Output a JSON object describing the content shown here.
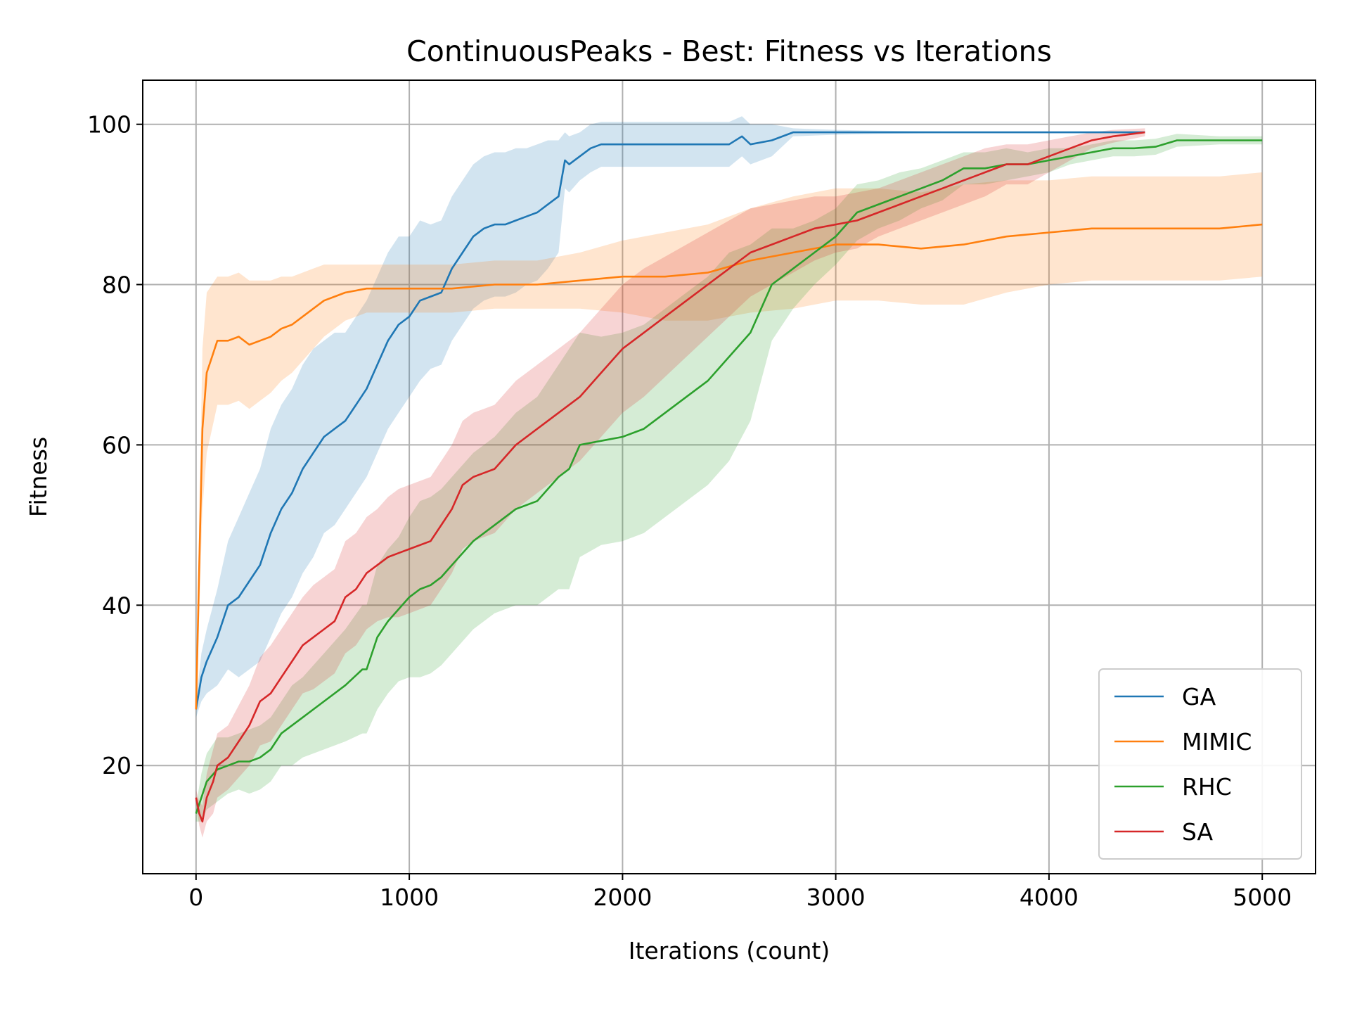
{
  "chart_data": {
    "type": "line",
    "title": "ContinuousPeaks - Best: Fitness vs Iterations",
    "xlabel": "Iterations (count)",
    "ylabel": "Fitness",
    "xlim": [
      -250,
      5250
    ],
    "ylim": [
      6.5,
      105.5
    ],
    "xticks": [
      0,
      1000,
      2000,
      3000,
      4000,
      5000
    ],
    "yticks": [
      20,
      40,
      60,
      80,
      100
    ],
    "grid": true,
    "legend_position": "lower-right",
    "shaded_band": "mean ± std (estimated)",
    "series": [
      {
        "name": "GA",
        "color": "#1f77b4",
        "x": [
          0,
          25,
          50,
          100,
          150,
          200,
          250,
          300,
          350,
          400,
          450,
          500,
          550,
          600,
          650,
          700,
          750,
          800,
          850,
          900,
          950,
          1000,
          1050,
          1100,
          1150,
          1200,
          1250,
          1300,
          1350,
          1400,
          1450,
          1500,
          1550,
          1600,
          1650,
          1700,
          1730,
          1750,
          1800,
          1850,
          1900,
          2000,
          2100,
          2200,
          2300,
          2400,
          2500,
          2560,
          2600,
          2700,
          2800,
          3000,
          3200,
          3500,
          4000,
          4450
        ],
        "y": [
          27,
          31,
          33,
          36,
          40,
          41,
          43,
          45,
          49,
          52,
          54,
          57,
          59,
          61,
          62,
          63,
          65,
          67,
          70,
          73,
          75,
          76,
          78,
          78.5,
          79,
          82,
          84,
          86,
          87,
          87.5,
          87.5,
          88,
          88.5,
          89,
          90,
          91,
          95.5,
          95,
          96,
          97,
          97.5,
          97.5,
          97.5,
          97.5,
          97.5,
          97.5,
          97.5,
          98.5,
          97.5,
          98,
          99,
          99,
          99,
          99,
          99,
          99
        ],
        "std": [
          1,
          3,
          4,
          6,
          8,
          10,
          11,
          12,
          13,
          13,
          13,
          13,
          13,
          12,
          12,
          11,
          11,
          11,
          11,
          11,
          11,
          10,
          10,
          9,
          9,
          9,
          9,
          9,
          9,
          9,
          9,
          9,
          8.5,
          8.5,
          8,
          7,
          3.5,
          3.5,
          3,
          3,
          2.8,
          2.8,
          2.8,
          2.8,
          2.8,
          2.8,
          2.8,
          2.5,
          2.5,
          2,
          0.5,
          0.3,
          0.2,
          0.1,
          0.1,
          0.1
        ]
      },
      {
        "name": "MIMIC",
        "color": "#ff7f0e",
        "x": [
          0,
          15,
          30,
          50,
          75,
          100,
          150,
          200,
          250,
          300,
          350,
          400,
          450,
          500,
          550,
          600,
          650,
          700,
          800,
          900,
          1000,
          1200,
          1400,
          1600,
          1800,
          2000,
          2200,
          2400,
          2600,
          2800,
          3000,
          3200,
          3400,
          3600,
          3800,
          4000,
          4200,
          4400,
          4600,
          4800,
          5000
        ],
        "y": [
          27,
          45,
          62,
          69,
          71,
          73,
          73,
          73.5,
          72.5,
          73,
          73.5,
          74.5,
          75,
          76,
          77,
          78,
          78.5,
          79,
          79.5,
          79.5,
          79.5,
          79.5,
          80,
          80,
          80.5,
          81,
          81,
          81.5,
          83,
          84,
          85,
          85,
          84.5,
          85,
          86,
          86.5,
          87,
          87,
          87,
          87,
          87.5
        ],
        "std": [
          1,
          6,
          10,
          10,
          9,
          8,
          8,
          8,
          8,
          7.5,
          7,
          6.5,
          6,
          5.5,
          5,
          4.5,
          4,
          3.5,
          3,
          3,
          3,
          3,
          3,
          3,
          3.5,
          4.5,
          5.5,
          6,
          6.5,
          7,
          7,
          7,
          7,
          7.5,
          7,
          6.5,
          6.5,
          6.5,
          6.5,
          6.5,
          6.5
        ]
      },
      {
        "name": "RHC",
        "color": "#2ca02c",
        "x": [
          0,
          25,
          50,
          100,
          150,
          200,
          250,
          300,
          350,
          400,
          450,
          500,
          600,
          700,
          780,
          800,
          850,
          900,
          950,
          1000,
          1050,
          1100,
          1150,
          1200,
          1300,
          1400,
          1500,
          1600,
          1700,
          1750,
          1800,
          1900,
          2000,
          2100,
          2200,
          2300,
          2400,
          2500,
          2600,
          2700,
          2800,
          2900,
          3000,
          3100,
          3200,
          3300,
          3400,
          3500,
          3600,
          3700,
          3800,
          3900,
          4000,
          4100,
          4200,
          4300,
          4400,
          4500,
          4600,
          4800,
          5000
        ],
        "y": [
          14,
          16,
          18,
          19.5,
          20,
          20.5,
          20.5,
          21,
          22,
          24,
          25,
          26,
          28,
          30,
          32,
          32,
          36,
          38,
          39.5,
          41,
          42,
          42.5,
          43.5,
          45,
          48,
          50,
          52,
          53,
          56,
          57,
          60,
          60.5,
          61,
          62,
          64,
          66,
          68,
          71,
          74,
          80,
          82,
          84,
          86,
          89,
          90,
          91,
          92,
          93,
          94.5,
          94.5,
          95,
          95,
          95.5,
          96,
          96.5,
          97,
          97,
          97.2,
          98,
          98,
          98
        ],
        "std": [
          1,
          3,
          3.5,
          4,
          3.5,
          3.5,
          4,
          4,
          4,
          4,
          5,
          5,
          6,
          7,
          8,
          8,
          9,
          9,
          9,
          10,
          11,
          11,
          11,
          11,
          11,
          11,
          12,
          13,
          14,
          15,
          14,
          13,
          13,
          13,
          13,
          13,
          13,
          13,
          11,
          7,
          5,
          4,
          3.5,
          3.5,
          3,
          3,
          2.5,
          2.5,
          2,
          2,
          2,
          1.5,
          1.5,
          1,
          1,
          1,
          1,
          1,
          0.8,
          0.5,
          0.5
        ]
      },
      {
        "name": "SA",
        "color": "#d62728",
        "x": [
          0,
          15,
          30,
          50,
          80,
          100,
          150,
          200,
          250,
          300,
          350,
          400,
          450,
          500,
          550,
          600,
          650,
          700,
          750,
          800,
          850,
          900,
          950,
          1000,
          1100,
          1150,
          1200,
          1250,
          1300,
          1350,
          1400,
          1500,
          1600,
          1700,
          1800,
          1900,
          2000,
          2100,
          2200,
          2300,
          2400,
          2500,
          2600,
          2700,
          2800,
          2900,
          3000,
          3100,
          3200,
          3300,
          3400,
          3500,
          3600,
          3700,
          3800,
          3900,
          4000,
          4100,
          4200,
          4300,
          4450
        ],
        "y": [
          16,
          14,
          13,
          16,
          18,
          20,
          21,
          23,
          25,
          28,
          29,
          31,
          33,
          35,
          36,
          37,
          38,
          41,
          42,
          44,
          45,
          46,
          46.5,
          47,
          48,
          50,
          52,
          55,
          56,
          56.5,
          57,
          60,
          62,
          64,
          66,
          69,
          72,
          74,
          76,
          78,
          80,
          82,
          84,
          85,
          86,
          87,
          87.5,
          88,
          89,
          90,
          91,
          92,
          93,
          94,
          95,
          95,
          96,
          97,
          98,
          98.5,
          99
        ],
        "std": [
          1,
          1.5,
          2,
          3,
          4,
          4,
          4,
          4.5,
          5,
          5.5,
          6,
          6,
          6,
          6,
          6.5,
          6.5,
          6.5,
          7,
          7,
          7,
          7,
          7.5,
          8,
          8,
          8,
          8,
          8,
          8,
          8,
          8,
          8,
          8,
          8,
          8,
          8,
          8,
          8,
          8,
          7.5,
          7,
          6.5,
          6,
          5.5,
          5,
          4.5,
          4,
          3.5,
          3.5,
          3,
          3,
          3,
          3,
          3,
          3,
          2.5,
          2.5,
          2,
          1.5,
          1,
          0.8,
          0.5
        ]
      }
    ]
  }
}
